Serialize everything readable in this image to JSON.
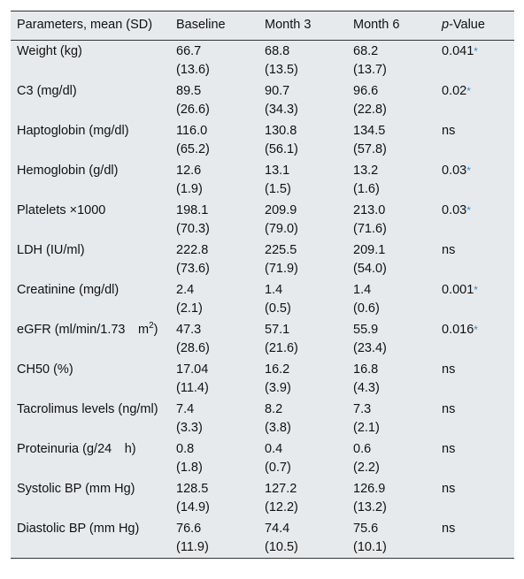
{
  "header": {
    "param": "Parameters, mean (SD)",
    "baseline": "Baseline",
    "month3": "Month 3",
    "month6": "Month 6",
    "p_italic": "p",
    "p_rest": "-Value"
  },
  "rows": [
    {
      "param": "Weight (kg)",
      "cells": [
        [
          "66.7",
          "(13.6)"
        ],
        [
          "68.8",
          "(13.5)"
        ],
        [
          "68.2",
          "(13.7)"
        ]
      ],
      "p": "0.041",
      "sig": "*"
    },
    {
      "param": "C3 (mg/dl)",
      "cells": [
        [
          "89.5",
          "(26.6)"
        ],
        [
          "90.7",
          "(34.3)"
        ],
        [
          "96.6",
          "(22.8)"
        ]
      ],
      "p": "0.02",
      "sig": "*"
    },
    {
      "param": "Haptoglobin (mg/dl)",
      "cells": [
        [
          "116.0",
          "(65.2)"
        ],
        [
          "130.8",
          "(56.1)"
        ],
        [
          "134.5",
          "(57.8)"
        ]
      ],
      "p": "ns"
    },
    {
      "param": "Hemoglobin (g/dl)",
      "cells": [
        [
          "12.6",
          "(1.9)"
        ],
        [
          "13.1",
          "(1.5)"
        ],
        [
          "13.2",
          "(1.6)"
        ]
      ],
      "p": "0.03",
      "sig": "*"
    },
    {
      "param": "Platelets ×1000",
      "cells": [
        [
          "198.1",
          "(70.3)"
        ],
        [
          "209.9",
          "(79.0)"
        ],
        [
          "213.0",
          "(71.6)"
        ]
      ],
      "p": "0.03",
      "sig": "*"
    },
    {
      "param": "LDH (IU/ml)",
      "cells": [
        [
          "222.8",
          "(73.6)"
        ],
        [
          "225.5",
          "(71.9)"
        ],
        [
          "209.1",
          "(54.0)"
        ]
      ],
      "p": "ns"
    },
    {
      "param": "Creatinine (mg/dl)",
      "cells": [
        [
          "2.4",
          "(2.1)"
        ],
        [
          "1.4",
          "(0.5)"
        ],
        [
          "1.4",
          "(0.6)"
        ]
      ],
      "p": "0.001",
      "sig": "*"
    },
    {
      "param": "eGFR (ml/min/1.73 m",
      "param_sup": "2",
      "param_after": ")",
      "cells": [
        [
          "47.3",
          "(28.6)"
        ],
        [
          "57.1",
          "(21.6)"
        ],
        [
          "55.9",
          "(23.4)"
        ]
      ],
      "p": "0.016",
      "sig": "*"
    },
    {
      "param": "CH50 (%)",
      "cells": [
        [
          "17.04",
          "(11.4)"
        ],
        [
          "16.2",
          "(3.9)"
        ],
        [
          "16.8",
          "(4.3)"
        ]
      ],
      "p": "ns"
    },
    {
      "param": "Tacrolimus levels (ng/ml)",
      "cells": [
        [
          "7.4",
          "(3.3)"
        ],
        [
          "8.2",
          "(3.8)"
        ],
        [
          "7.3",
          "(2.1)"
        ]
      ],
      "p": "ns"
    },
    {
      "param": "Proteinuria (g/24 h)",
      "cells": [
        [
          "0.8",
          "(1.8)"
        ],
        [
          "0.4",
          "(0.7)"
        ],
        [
          "0.6",
          "(2.2)"
        ]
      ],
      "p": "ns"
    },
    {
      "param": "Systolic BP (mm Hg)",
      "cells": [
        [
          "128.5",
          "(14.9)"
        ],
        [
          "127.2",
          "(12.2)"
        ],
        [
          "126.9",
          "(13.2)"
        ]
      ],
      "p": "ns"
    },
    {
      "param": "Diastolic BP (mm Hg)",
      "cells": [
        [
          "76.6",
          "(11.9)"
        ],
        [
          "74.4",
          "(10.5)"
        ],
        [
          "75.6",
          "(10.1)"
        ]
      ],
      "p": "ns"
    }
  ]
}
